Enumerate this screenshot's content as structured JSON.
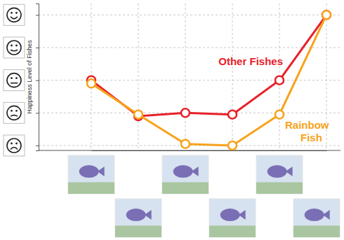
{
  "chart_data": {
    "type": "line",
    "y_label": "Happiness Level of Fishes",
    "categories": [
      null,
      null,
      null,
      null,
      null,
      null
    ],
    "series": [
      {
        "name": "Other Fishes",
        "color": "#e8202a",
        "marker": "circle",
        "values": [
          2,
          0.9,
          1,
          0.95,
          2,
          4
        ]
      },
      {
        "name": "Rainbow Fish",
        "color": "#f7a21b",
        "marker": "circle",
        "values": [
          1.9,
          0.95,
          0.05,
          0,
          0.95,
          4
        ]
      }
    ],
    "ylim": [
      -0.15,
      4.35
    ],
    "yticks": [
      0,
      1,
      2,
      3,
      4
    ],
    "grid": true,
    "tick_labels": false
  }
}
